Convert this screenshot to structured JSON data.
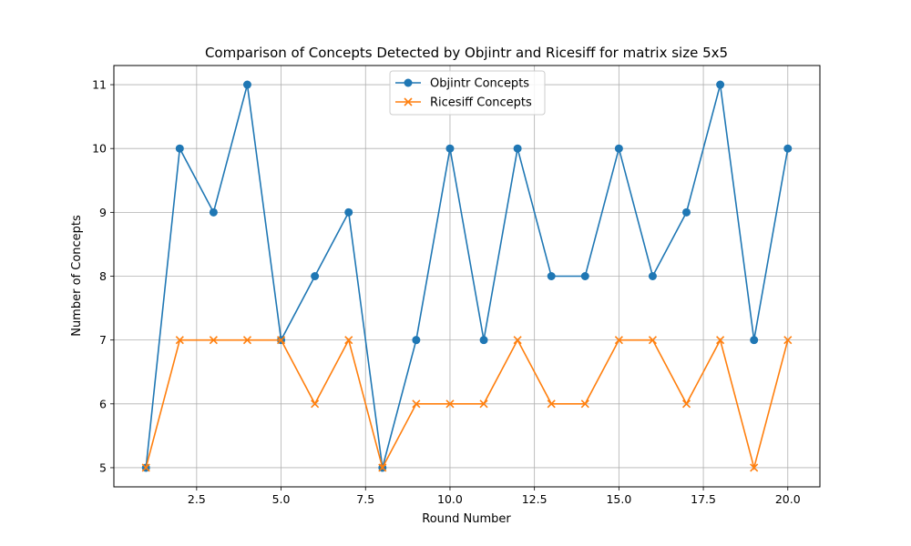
{
  "chart_data": {
    "type": "line",
    "title": "Comparison of Concepts Detected by Objintr and Ricesiff for matrix size 5x5",
    "xlabel": "Round Number",
    "ylabel": "Number of Concepts",
    "x": [
      1,
      2,
      3,
      4,
      5,
      6,
      7,
      8,
      9,
      10,
      11,
      12,
      13,
      14,
      15,
      16,
      17,
      18,
      19,
      20
    ],
    "xlim": [
      0.05,
      20.95
    ],
    "ylim": [
      4.7,
      11.3
    ],
    "xticks": [
      2.5,
      5.0,
      7.5,
      10.0,
      12.5,
      15.0,
      17.5,
      20.0
    ],
    "xtick_labels": [
      "2.5",
      "5.0",
      "7.5",
      "10.0",
      "12.5",
      "15.0",
      "17.5",
      "20.0"
    ],
    "yticks": [
      5,
      6,
      7,
      8,
      9,
      10,
      11
    ],
    "ytick_labels": [
      "5",
      "6",
      "7",
      "8",
      "9",
      "10",
      "11"
    ],
    "grid": true,
    "legend_position": "upper center",
    "series": [
      {
        "name": "Objintr Concepts",
        "color": "#1f77b4",
        "marker": "circle",
        "values": [
          5,
          10,
          9,
          11,
          7,
          8,
          9,
          5,
          7,
          10,
          7,
          10,
          8,
          8,
          10,
          8,
          9,
          11,
          7,
          10
        ]
      },
      {
        "name": "Ricesiff Concepts",
        "color": "#ff7f0e",
        "marker": "x",
        "values": [
          5,
          7,
          7,
          7,
          7,
          6,
          7,
          5,
          6,
          6,
          6,
          7,
          6,
          6,
          7,
          7,
          6,
          7,
          5,
          7
        ]
      }
    ]
  }
}
